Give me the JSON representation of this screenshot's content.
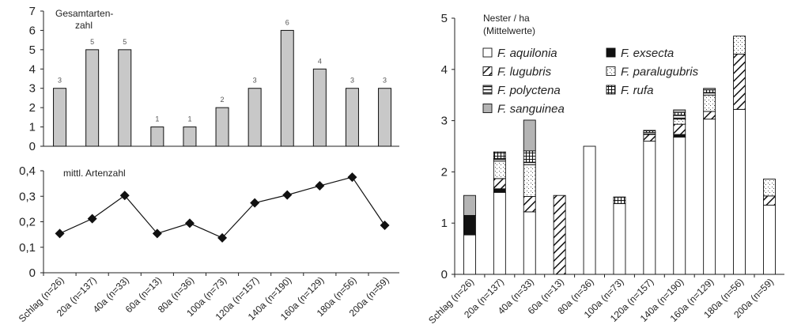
{
  "chart_data": [
    {
      "type": "bar",
      "title": [
        "Gesamtarten-",
        "zahl"
      ],
      "ylim": [
        0,
        7
      ],
      "yticks": [
        "0",
        "1",
        "2",
        "3",
        "4",
        "5",
        "6",
        "7"
      ],
      "categories": [
        "Schlag (n=26)",
        "20a (n=137)",
        "40a (n=33)",
        "60a (n=13)",
        "80a (n=36)",
        "100a (n=73)",
        "120a (n=157)",
        "140a (n=190)",
        "160a (n=129)",
        "180a (n=56)",
        "200a (n=59)"
      ],
      "values": [
        3,
        5,
        5,
        1,
        1,
        2,
        3,
        6,
        4,
        3,
        3
      ],
      "bar_color": "#c8c8c8"
    },
    {
      "type": "line",
      "title": "mittl. Artenzahl",
      "ylim": [
        0,
        0.4
      ],
      "yticks": [
        "0",
        "0,1",
        "0,2",
        "0,3",
        "0,4"
      ],
      "categories": [
        "Schlag (n=26)",
        "20a (n=137)",
        "40a (n=33)",
        "60a (n=13)",
        "80a (n=36)",
        "100a (n=73)",
        "120a (n=157)",
        "140a (n=190)",
        "160a (n=129)",
        "180a (n=56)",
        "200a (n=59)"
      ],
      "values": [
        0.154,
        0.212,
        0.303,
        0.154,
        0.194,
        0.137,
        0.274,
        0.305,
        0.341,
        0.375,
        0.186
      ],
      "marker": "diamond"
    },
    {
      "type": "bar",
      "stacked": true,
      "title": [
        "Nester / ha",
        "(Mittelwerte)"
      ],
      "ylim": [
        0,
        5
      ],
      "yticks": [
        "0",
        "1",
        "2",
        "3",
        "4",
        "5"
      ],
      "categories": [
        "Schlag (n=26)",
        "20a (n=137)",
        "40a (n=33)",
        "60a (n=13)",
        "80a (n=36)",
        "100a (n=73)",
        "120a (n=157)",
        "140a (n=190)",
        "160a (n=129)",
        "180a (n=56)",
        "200a (n=59)"
      ],
      "series": [
        {
          "name": "F. aquilonia",
          "pattern": "white",
          "values": [
            0.77,
            1.6,
            1.22,
            0,
            2.5,
            1.38,
            2.6,
            2.68,
            3.03,
            3.22,
            1.35
          ]
        },
        {
          "name": "F. exsecta",
          "pattern": "black",
          "values": [
            0.38,
            0.07,
            0,
            0,
            0,
            0,
            0,
            0.05,
            0,
            0,
            0
          ]
        },
        {
          "name": "F. lugubris",
          "pattern": "diag",
          "values": [
            0,
            0.2,
            0.3,
            1.54,
            0,
            0,
            0.13,
            0.2,
            0.15,
            1.08,
            0.18
          ]
        },
        {
          "name": "F. paralugubris",
          "pattern": "dots",
          "values": [
            0,
            0.34,
            0.62,
            0,
            0,
            0,
            0,
            0.1,
            0.32,
            0.35,
            0.33
          ]
        },
        {
          "name": "F. polyctena",
          "pattern": "hlines",
          "values": [
            0,
            0.05,
            0.05,
            0,
            0,
            0,
            0.04,
            0.07,
            0.05,
            0,
            0
          ]
        },
        {
          "name": "F. rufa",
          "pattern": "grid",
          "values": [
            0,
            0.13,
            0.22,
            0,
            0,
            0.13,
            0.04,
            0.06,
            0.05,
            0,
            0
          ]
        },
        {
          "name": "F. sanguinea",
          "pattern": "gray",
          "values": [
            0.39,
            0,
            0.6,
            0,
            0,
            0,
            0,
            0.05,
            0.03,
            0,
            0
          ]
        }
      ],
      "legend": "top-left"
    }
  ]
}
